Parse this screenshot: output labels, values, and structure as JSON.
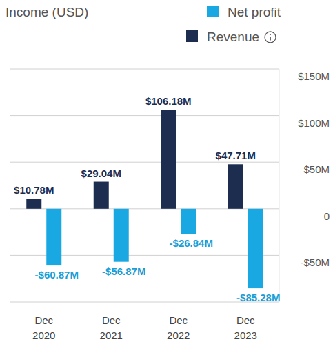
{
  "chart_data": {
    "type": "bar",
    "title": "Income (USD)",
    "categories": [
      "Dec 2020",
      "Dec 2021",
      "Dec 2022",
      "Dec 2023"
    ],
    "series": [
      {
        "name": "Revenue",
        "color": "#1c2d50",
        "values": [
          10.78,
          29.04,
          106.18,
          47.71
        ],
        "value_labels": [
          "$10.78M",
          "$29.04M",
          "$106.18M",
          "$47.71M"
        ]
      },
      {
        "name": "Net profit",
        "color": "#19a8e2",
        "values": [
          -60.87,
          -56.87,
          -26.84,
          -85.28
        ],
        "value_labels": [
          "-$60.87M",
          "-$56.87M",
          "-$26.84M",
          "-$85.28M"
        ]
      }
    ],
    "ylim": [
      -100,
      150
    ],
    "yticks": [
      {
        "value": 150,
        "label": "$150M"
      },
      {
        "value": 100,
        "label": "$100M"
      },
      {
        "value": 50,
        "label": "$50M"
      },
      0,
      {
        "value": -50,
        "label": "-$50M"
      }
    ],
    "grid": true,
    "legend": "top-right",
    "data_labels": true
  }
}
